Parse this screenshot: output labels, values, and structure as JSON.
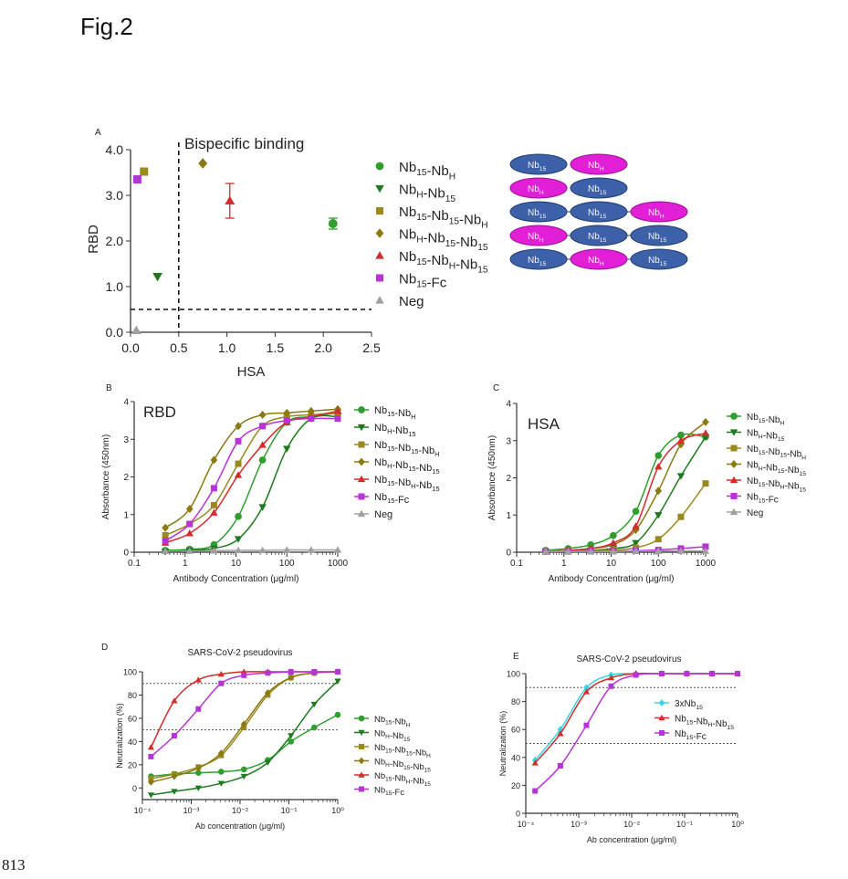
{
  "figure_title": "Fig.2",
  "page_number": "813",
  "colors": {
    "Nb15-NbH": "#2e9e2e",
    "NbH-Nb15": "#1f7a1f",
    "Nb15-Nb15-NbH": "#9a8a1e",
    "NbH-Nb15-Nb15": "#8a7a12",
    "Nb15-NbH-Nb15": "#d42b2b",
    "Nb15-Fc": "#b833d6",
    "Neg": "#a0a0a0",
    "3xNb15": "#33d6e6",
    "nb15_domain": "#3c61a8",
    "nbh_domain": "#e11fd6"
  },
  "schematic": {
    "nb15_label": "Nb15",
    "nbh_label": "NbH",
    "rows": [
      [
        "Nb15",
        "NbH"
      ],
      [
        "NbH",
        "Nb15"
      ],
      [
        "Nb15",
        "Nb15",
        "NbH"
      ],
      [
        "NbH",
        "Nb15",
        "Nb15"
      ],
      [
        "Nb15",
        "NbH",
        "Nb15"
      ]
    ]
  },
  "chart_data": [
    {
      "panel": "A",
      "type": "scatter",
      "annotation": "Bispecific binding",
      "xlabel": "HSA",
      "ylabel": "RBD",
      "xlim": [
        0,
        2.5
      ],
      "ylim": [
        0,
        4
      ],
      "xticks": [
        "0.0",
        "0.5",
        "1.0",
        "1.5",
        "2.0",
        "2.5"
      ],
      "yticks": [
        "0.0",
        "1.0",
        "2.0",
        "3.0",
        "4.0"
      ],
      "cutoffs": {
        "x": 0.5,
        "y": 0.5
      },
      "series": [
        {
          "name": "Nb15-NbH",
          "x": 2.1,
          "y": 2.38,
          "err": 0.12
        },
        {
          "name": "NbH-Nb15",
          "x": 0.28,
          "y": 1.22
        },
        {
          "name": "Nb15-Nb15-NbH",
          "x": 0.14,
          "y": 3.52
        },
        {
          "name": "NbH-Nb15-Nb15",
          "x": 0.75,
          "y": 3.7
        },
        {
          "name": "Nb15-NbH-Nb15",
          "x": 1.03,
          "y": 2.88,
          "err": 0.38
        },
        {
          "name": "Nb15-Fc",
          "x": 0.07,
          "y": 3.35
        },
        {
          "name": "Neg",
          "x": 0.06,
          "y": 0.04
        }
      ]
    },
    {
      "panel": "B",
      "type": "line",
      "title": "RBD",
      "xlabel": "Antibody Concentration (μg/ml)",
      "ylabel": "Absorbance (450nm)",
      "xscale": "log",
      "xlim": [
        0.1,
        1000
      ],
      "ylim": [
        0,
        4
      ],
      "xticks": [
        "0.1",
        "1",
        "10",
        "100",
        "1000"
      ],
      "yticks": [
        "0",
        "1",
        "2",
        "3",
        "4"
      ],
      "x": [
        0.41,
        1.23,
        3.7,
        11.1,
        33.3,
        100,
        300,
        1000
      ],
      "series": [
        {
          "name": "Nb15-NbH",
          "values": [
            0.05,
            0.08,
            0.2,
            0.95,
            2.45,
            3.45,
            3.6,
            3.7
          ]
        },
        {
          "name": "NbH-Nb15",
          "values": [
            0.02,
            0.05,
            0.1,
            0.35,
            1.2,
            2.75,
            3.55,
            3.6
          ]
        },
        {
          "name": "Nb15-Nb15-NbH",
          "values": [
            0.45,
            0.75,
            1.25,
            2.35,
            3.35,
            3.6,
            3.65,
            3.7
          ]
        },
        {
          "name": "NbH-Nb15-Nb15",
          "values": [
            0.65,
            1.15,
            2.45,
            3.35,
            3.65,
            3.7,
            3.75,
            3.8
          ]
        },
        {
          "name": "Nb15-NbH-Nb15",
          "values": [
            0.25,
            0.5,
            1.05,
            2.05,
            2.85,
            3.45,
            3.6,
            3.75
          ]
        },
        {
          "name": "Nb15-Fc",
          "values": [
            0.3,
            0.75,
            1.7,
            2.95,
            3.35,
            3.5,
            3.55,
            3.55
          ]
        },
        {
          "name": "Neg",
          "values": [
            0.03,
            0.03,
            0.04,
            0.05,
            0.05,
            0.06,
            0.06,
            0.06
          ]
        }
      ]
    },
    {
      "panel": "C",
      "type": "line",
      "title": "HSA",
      "xlabel": "Antibody Concentration (μg/ml)",
      "ylabel": "Absorbance (450nm)",
      "xscale": "log",
      "xlim": [
        0.1,
        1000
      ],
      "ylim": [
        0,
        4
      ],
      "xticks": [
        "0.1",
        "1",
        "10",
        "100",
        "1000"
      ],
      "yticks": [
        "0",
        "1",
        "2",
        "3",
        "4"
      ],
      "x": [
        0.41,
        1.23,
        3.7,
        11.1,
        33.3,
        100,
        300,
        1000
      ],
      "series": [
        {
          "name": "Nb15-NbH",
          "values": [
            0.05,
            0.1,
            0.2,
            0.45,
            1.1,
            2.6,
            3.15,
            3.1
          ]
        },
        {
          "name": "NbH-Nb15",
          "values": [
            0.02,
            0.03,
            0.05,
            0.1,
            0.25,
            1.0,
            2.05,
            3.1
          ]
        },
        {
          "name": "Nb15-Nb15-NbH",
          "values": [
            0.02,
            0.03,
            0.04,
            0.06,
            0.12,
            0.35,
            0.95,
            1.85
          ]
        },
        {
          "name": "NbH-Nb15-Nb15",
          "values": [
            0.03,
            0.05,
            0.1,
            0.2,
            0.6,
            1.65,
            2.9,
            3.5
          ]
        },
        {
          "name": "Nb15-NbH-Nb15",
          "values": [
            0.02,
            0.05,
            0.1,
            0.25,
            0.7,
            2.3,
            3.0,
            3.2
          ]
        },
        {
          "name": "Nb15-Fc",
          "values": [
            0.02,
            0.02,
            0.03,
            0.03,
            0.04,
            0.06,
            0.1,
            0.15
          ]
        },
        {
          "name": "Neg",
          "values": [
            0.02,
            0.02,
            0.02,
            0.02,
            0.03,
            0.03,
            0.03,
            0.03
          ]
        }
      ]
    },
    {
      "panel": "D",
      "type": "line",
      "title": "SARS-CoV-2 pseudovirus",
      "xlabel": "Ab concentration (μg/ml)",
      "ylabel": "Neutralization (%)",
      "xscale": "log",
      "xlim": [
        0.0001,
        1
      ],
      "ylim": [
        -10,
        100
      ],
      "xticks": [
        "10⁻⁴",
        "10⁻³",
        "10⁻²",
        "10⁻¹",
        "10⁰"
      ],
      "yticks": [
        "0",
        "20",
        "40",
        "60",
        "80",
        "100"
      ],
      "reference_lines": [
        50,
        90
      ],
      "x": [
        0.00015,
        0.00045,
        0.0014,
        0.0041,
        0.012,
        0.037,
        0.11,
        0.33,
        1.0
      ],
      "series": [
        {
          "name": "Nb15-NbH",
          "values": [
            10,
            12,
            13,
            14,
            16,
            24,
            40,
            52,
            63
          ]
        },
        {
          "name": "NbH-Nb15",
          "values": [
            -6,
            -3,
            0,
            4,
            10,
            22,
            45,
            72,
            92
          ]
        },
        {
          "name": "Nb15-Nb15-NbH",
          "values": [
            8,
            12,
            18,
            28,
            52,
            80,
            95,
            99,
            100
          ]
        },
        {
          "name": "NbH-Nb15-Nb15",
          "values": [
            5,
            10,
            17,
            30,
            55,
            82,
            95,
            99,
            100
          ]
        },
        {
          "name": "Nb15-NbH-Nb15",
          "values": [
            35,
            75,
            93,
            98,
            100,
            100,
            100,
            100,
            100
          ]
        },
        {
          "name": "Nb15-Fc",
          "values": [
            27,
            45,
            68,
            90,
            97,
            99,
            100,
            100,
            100
          ]
        }
      ]
    },
    {
      "panel": "E",
      "type": "line",
      "title": "SARS-CoV-2 pseudovirus",
      "xlabel": "Ab concentration (μg/ml)",
      "ylabel": "Neutralization (%)",
      "xscale": "log",
      "xlim": [
        0.0001,
        1
      ],
      "ylim": [
        0,
        100
      ],
      "xticks": [
        "10⁻⁴",
        "10⁻³",
        "10⁻²",
        "10⁻¹",
        "10⁰"
      ],
      "yticks": [
        "0",
        "20",
        "40",
        "60",
        "80",
        "100"
      ],
      "reference_lines": [
        50,
        90
      ],
      "x": [
        0.00015,
        0.00045,
        0.0014,
        0.0041,
        0.012,
        0.037,
        0.11,
        0.33,
        1.0
      ],
      "series": [
        {
          "name": "3xNb15",
          "values": [
            38,
            60,
            90,
            99,
            100,
            100,
            100,
            100,
            100
          ]
        },
        {
          "name": "Nb15-NbH-Nb15",
          "values": [
            36,
            57,
            87,
            97,
            100,
            100,
            100,
            100,
            100
          ]
        },
        {
          "name": "Nb15-Fc",
          "values": [
            16,
            34,
            63,
            91,
            99,
            100,
            100,
            100,
            100
          ]
        }
      ]
    }
  ],
  "legends": {
    "A": [
      {
        "series": "Nb15-NbH",
        "base1": "Nb",
        "sub1": "15",
        "mid": "-Nb",
        "sub2": "H",
        "tail": "",
        "sub3": "",
        "marker": "circle"
      },
      {
        "series": "NbH-Nb15",
        "base1": "Nb",
        "sub1": "H",
        "mid": "-Nb",
        "sub2": "15",
        "tail": "",
        "sub3": "",
        "marker": "tri-down"
      },
      {
        "series": "Nb15-Nb15-NbH",
        "base1": "Nb",
        "sub1": "15",
        "mid": "-Nb",
        "sub2": "15",
        "tail": "-Nb",
        "sub3": "H",
        "marker": "square"
      },
      {
        "series": "NbH-Nb15-Nb15",
        "base1": "Nb",
        "sub1": "H",
        "mid": "-Nb",
        "sub2": "15",
        "tail": "-Nb",
        "sub3": "15",
        "marker": "diamond"
      },
      {
        "series": "Nb15-NbH-Nb15",
        "base1": "Nb",
        "sub1": "15",
        "mid": "-Nb",
        "sub2": "H",
        "tail": "-Nb",
        "sub3": "15",
        "marker": "tri-up"
      },
      {
        "series": "Nb15-Fc",
        "base1": "Nb",
        "sub1": "15",
        "mid": "-Fc",
        "sub2": "",
        "tail": "",
        "sub3": "",
        "marker": "square"
      },
      {
        "series": "Neg",
        "base1": "Neg",
        "sub1": "",
        "mid": "",
        "sub2": "",
        "tail": "",
        "sub3": "",
        "marker": "tri-up"
      }
    ]
  },
  "panel_letters": {
    "A": "A",
    "B": "B",
    "C": "C",
    "D": "D",
    "E": "E"
  }
}
